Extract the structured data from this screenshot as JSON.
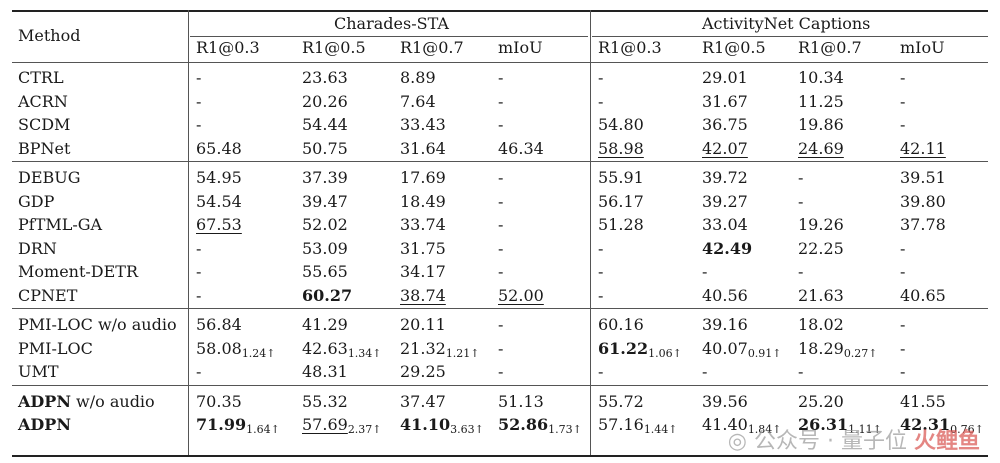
{
  "header": {
    "method_label": "Method",
    "groups": [
      "Charades-STA",
      "ActivityNet Captions"
    ],
    "columns": [
      "R1@0.3",
      "R1@0.5",
      "R1@0.7",
      "mIoU",
      "R1@0.3",
      "R1@0.5",
      "R1@0.7",
      "mIoU"
    ]
  },
  "sections": [
    [
      {
        "method": "CTRL",
        "cells": [
          "-",
          "23.63",
          "8.89",
          "-",
          "-",
          "29.01",
          "10.34",
          "-"
        ]
      },
      {
        "method": "ACRN",
        "cells": [
          "-",
          "20.26",
          "7.64",
          "-",
          "-",
          "31.67",
          "11.25",
          "-"
        ]
      },
      {
        "method": "SCDM",
        "cells": [
          "-",
          "54.44",
          "33.43",
          "-",
          "54.80",
          "36.75",
          "19.86",
          "-"
        ]
      },
      {
        "method": "BPNet",
        "cells": [
          "65.48",
          "50.75",
          "31.64",
          "46.34",
          "58.98",
          "42.07",
          "24.69",
          "42.11"
        ],
        "underline": [
          4,
          5,
          6,
          7
        ]
      }
    ],
    [
      {
        "method": "DEBUG",
        "cells": [
          "54.95",
          "37.39",
          "17.69",
          "-",
          "55.91",
          "39.72",
          "-",
          "39.51"
        ]
      },
      {
        "method": "GDP",
        "cells": [
          "54.54",
          "39.47",
          "18.49",
          "-",
          "56.17",
          "39.27",
          "-",
          "39.80"
        ]
      },
      {
        "method": "PfTML-GA",
        "cells": [
          "67.53",
          "52.02",
          "33.74",
          "-",
          "51.28",
          "33.04",
          "19.26",
          "37.78"
        ],
        "underline": [
          0
        ]
      },
      {
        "method": "DRN",
        "cells": [
          "-",
          "53.09",
          "31.75",
          "-",
          "-",
          "42.49",
          "22.25",
          "-"
        ],
        "bold": [
          5
        ]
      },
      {
        "method": "Moment-DETR",
        "cells": [
          "-",
          "55.65",
          "34.17",
          "-",
          "-",
          "-",
          "-",
          "-"
        ]
      },
      {
        "method": "CPNET",
        "cells": [
          "-",
          "60.27",
          "38.74",
          "52.00",
          "-",
          "40.56",
          "21.63",
          "40.65"
        ],
        "bold": [
          1
        ],
        "underline": [
          2,
          3
        ]
      }
    ],
    [
      {
        "method": "PMI-LOC w/o audio",
        "cells": [
          "56.84",
          "41.29",
          "20.11",
          "-",
          "60.16",
          "39.16",
          "18.02",
          "-"
        ]
      },
      {
        "method": "PMI-LOC",
        "cells": [
          "58.08",
          "42.63",
          "21.32",
          "-",
          "61.22",
          "40.07",
          "18.29",
          "-"
        ],
        "subs": [
          "1.24↑",
          "1.34↑",
          "1.21↑",
          "",
          "1.06↑",
          "0.91↑",
          "0.27↑",
          ""
        ],
        "bold": [
          4
        ]
      },
      {
        "method": "UMT",
        "cells": [
          "-",
          "48.31",
          "29.25",
          "-",
          "-",
          "-",
          "-",
          "-"
        ]
      }
    ],
    [
      {
        "method": "ADPN w/o audio",
        "method_bold": "ADPN",
        "method_rest": " w/o audio",
        "cells": [
          "70.35",
          "55.32",
          "37.47",
          "51.13",
          "55.72",
          "39.56",
          "25.20",
          "41.55"
        ]
      },
      {
        "method": "ADPN",
        "method_bold": "ADPN",
        "method_rest": "",
        "cells": [
          "71.99",
          "57.69",
          "41.10",
          "52.86",
          "57.16",
          "41.40",
          "26.31",
          "42.31"
        ],
        "subs": [
          "1.64↑",
          "2.37↑",
          "3.63↑",
          "1.73↑",
          "1.44↑",
          "1.84↑",
          "1.11↑",
          "0.76↑"
        ],
        "bold": [
          0,
          2,
          3,
          6,
          7
        ],
        "underline": [
          1
        ]
      }
    ]
  ],
  "watermark": {
    "text": "公众号 · 量子位",
    "brand": "火鲤鱼"
  }
}
